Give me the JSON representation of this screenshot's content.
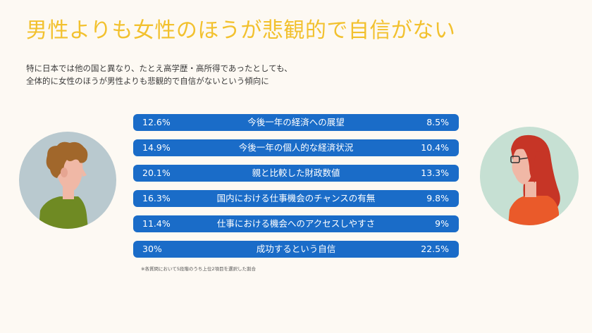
{
  "title": "男性よりも女性のほうが悲観的で自信がない",
  "subtitle": {
    "line1": "特に日本では他の国と異なり、たとえ高学歴・高所得であったとしても、",
    "line2": "全体的に女性のほうが男性よりも悲観的で自信がないという傾向に"
  },
  "bars": [
    {
      "male": "12.6%",
      "label": "今後一年の経済への展望",
      "female": "8.5%"
    },
    {
      "male": "14.9%",
      "label": "今後一年の個人的な経済状況",
      "female": "10.4%"
    },
    {
      "male": "20.1%",
      "label": "親と比較した財政数値",
      "female": "13.3%"
    },
    {
      "male": "16.3%",
      "label": "国内における仕事機会のチャンスの有無",
      "female": "9.8%"
    },
    {
      "male": "11.4%",
      "label": "仕事における機会へのアクセスしやすさ",
      "female": "9%"
    },
    {
      "male": "30%",
      "label": "成功するという自信",
      "female": "22.5%"
    }
  ],
  "note": "※各質問において5段階のうち上位2項目を選択した割合",
  "colors": {
    "title": "#f2c12e",
    "bar": "#1a6cc8",
    "background": "#fdf9f3",
    "male_circle": "#b9c9cf",
    "female_circle": "#c6e0d3"
  },
  "icons": {
    "male": "man-avatar-icon",
    "female": "woman-avatar-icon"
  }
}
